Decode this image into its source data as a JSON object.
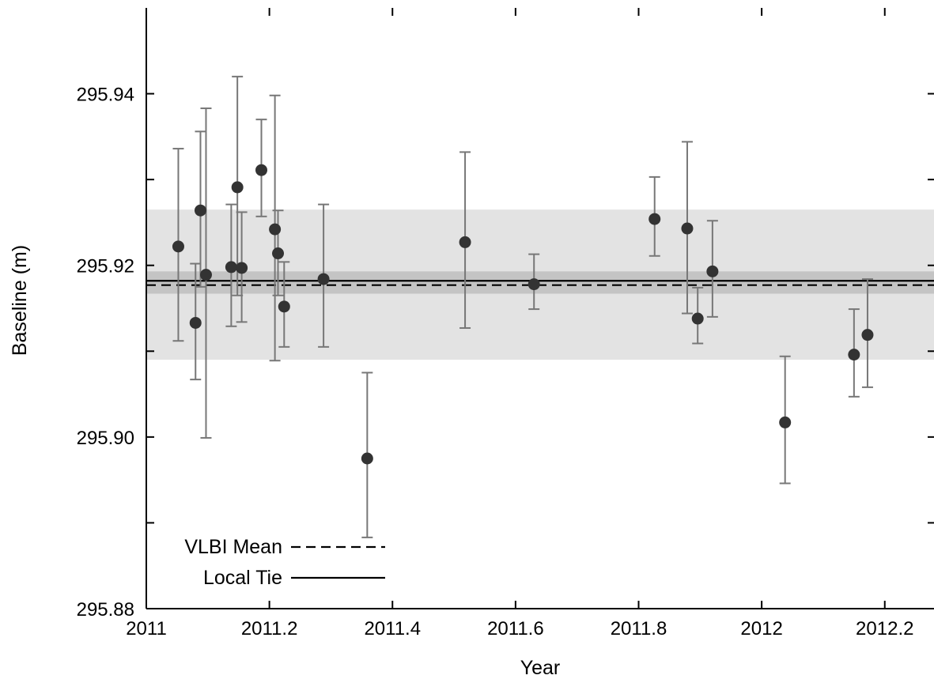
{
  "chart_data": {
    "type": "scatter",
    "title": "",
    "xlabel": "Year",
    "ylabel": "Baseline (m)",
    "xlim": [
      2011,
      2012.28
    ],
    "ylim": [
      295.88,
      295.95
    ],
    "x_ticks": [
      2011,
      2011.2,
      2011.4,
      2011.6,
      2011.8,
      2012,
      2012.2
    ],
    "x_tick_labels": [
      "2011",
      "2011.2",
      "2011.4",
      "2011.6",
      "2011.8",
      "2012",
      "2012.2"
    ],
    "y_ticks": [
      295.88,
      295.89,
      295.9,
      295.91,
      295.92,
      295.93,
      295.94
    ],
    "y_tick_labels": [
      "295.88",
      "",
      "295.90",
      "",
      "295.92",
      "",
      "295.94"
    ],
    "grid": false,
    "legend_position": "bottom-left",
    "colors": {
      "points": "#333333",
      "errorbars": "#777777",
      "band_outer": "#e3e3e3",
      "band_inner": "#c4c4c4",
      "lines": "#000000"
    },
    "bands": [
      {
        "lower": 295.909,
        "upper": 295.9265
      },
      {
        "lower": 295.9167,
        "upper": 295.9193
      }
    ],
    "reference_lines": [
      {
        "name": "VLBI Mean",
        "value": 295.9177,
        "style": "dashed"
      },
      {
        "name": "Local Tie",
        "value": 295.9182,
        "style": "solid"
      }
    ],
    "points": [
      {
        "x": 2011.052,
        "y": 295.9222,
        "low": 295.9112,
        "high": 295.9336
      },
      {
        "x": 2011.08,
        "y": 295.9133,
        "low": 295.9067,
        "high": 295.9202
      },
      {
        "x": 2011.088,
        "y": 295.9264,
        "low": 295.9175,
        "high": 295.9356
      },
      {
        "x": 2011.097,
        "y": 295.9189,
        "low": 295.8999,
        "high": 295.9383
      },
      {
        "x": 2011.138,
        "y": 295.9198,
        "low": 295.9129,
        "high": 295.9271
      },
      {
        "x": 2011.148,
        "y": 295.9291,
        "low": 295.9165,
        "high": 295.942
      },
      {
        "x": 2011.155,
        "y": 295.9197,
        "low": 295.9134,
        "high": 295.9262
      },
      {
        "x": 2011.187,
        "y": 295.9311,
        "low": 295.9257,
        "high": 295.937
      },
      {
        "x": 2011.209,
        "y": 295.9242,
        "low": 295.9089,
        "high": 295.9398
      },
      {
        "x": 2011.214,
        "y": 295.9214,
        "low": 295.9165,
        "high": 295.9264
      },
      {
        "x": 2011.224,
        "y": 295.9152,
        "low": 295.9105,
        "high": 295.9204
      },
      {
        "x": 2011.288,
        "y": 295.9184,
        "low": 295.9105,
        "high": 295.9271
      },
      {
        "x": 2011.359,
        "y": 295.8975,
        "low": 295.8883,
        "high": 295.9075
      },
      {
        "x": 2011.518,
        "y": 295.9227,
        "low": 295.9127,
        "high": 295.9332
      },
      {
        "x": 2011.63,
        "y": 295.9178,
        "low": 295.9149,
        "high": 295.9213
      },
      {
        "x": 2011.826,
        "y": 295.9254,
        "low": 295.9211,
        "high": 295.9303
      },
      {
        "x": 2011.879,
        "y": 295.9243,
        "low": 295.9144,
        "high": 295.9344
      },
      {
        "x": 2011.896,
        "y": 295.9138,
        "low": 295.9109,
        "high": 295.9174
      },
      {
        "x": 2011.92,
        "y": 295.9193,
        "low": 295.914,
        "high": 295.9252
      },
      {
        "x": 2012.038,
        "y": 295.9017,
        "low": 295.8946,
        "high": 295.9094
      },
      {
        "x": 2012.15,
        "y": 295.9096,
        "low": 295.9047,
        "high": 295.9149
      },
      {
        "x": 2012.172,
        "y": 295.9119,
        "low": 295.9058,
        "high": 295.9184
      }
    ]
  }
}
